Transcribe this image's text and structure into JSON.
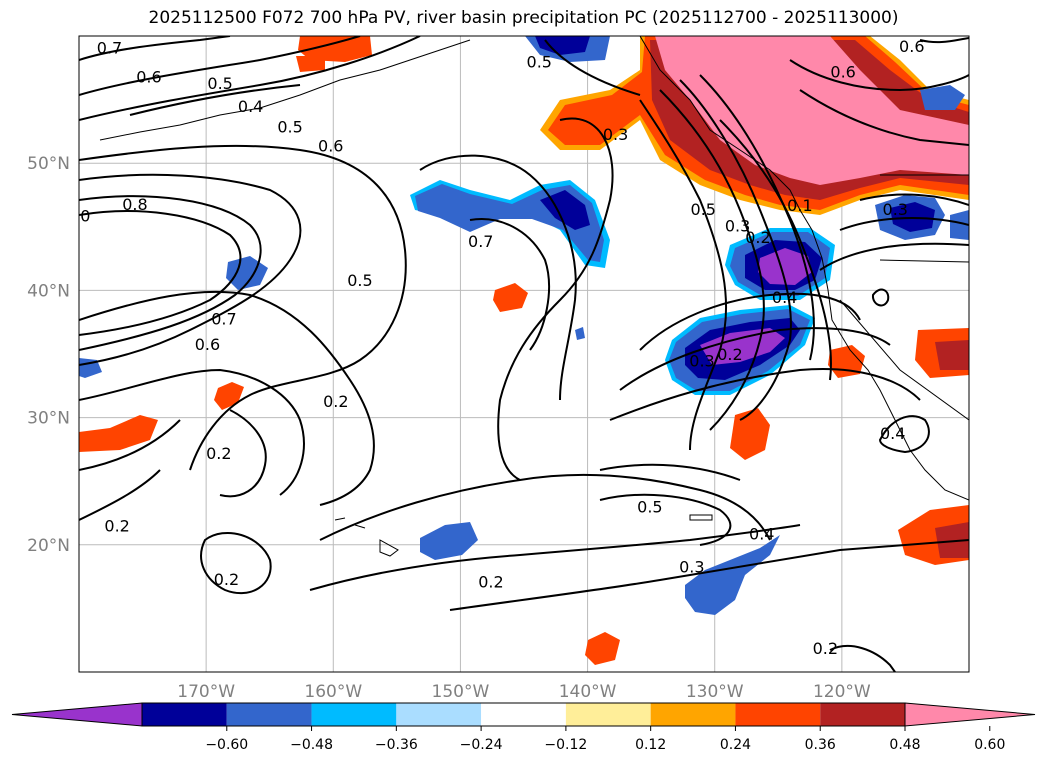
{
  "title": "2025112500 F072 700 hPa PV, river basin precipitation PC (2025112700 - 2025113000)",
  "map": {
    "lat_ticks": [
      {
        "lat": 50,
        "label": "50°N"
      },
      {
        "lat": 40,
        "label": "40°N"
      },
      {
        "lat": 30,
        "label": "30°N"
      },
      {
        "lat": 20,
        "label": "20°N"
      }
    ],
    "lon_ticks": [
      {
        "lon": -170,
        "label": "170°W"
      },
      {
        "lon": -160,
        "label": "160°W"
      },
      {
        "lon": -150,
        "label": "150°W"
      },
      {
        "lon": -140,
        "label": "140°W"
      },
      {
        "lon": -130,
        "label": "130°W"
      },
      {
        "lon": -120,
        "label": "120°W"
      }
    ],
    "contour_labels": [
      {
        "text": "0.7",
        "lon": -177.6,
        "lat": 59.1
      },
      {
        "text": "0.6",
        "lon": -174.5,
        "lat": 56.8
      },
      {
        "text": "0.5",
        "lon": -168.9,
        "lat": 56.3
      },
      {
        "text": "0.4",
        "lon": -166.5,
        "lat": 54.5
      },
      {
        "text": "0.5",
        "lon": -163.4,
        "lat": 52.9
      },
      {
        "text": "0.6",
        "lon": -160.2,
        "lat": 51.4
      },
      {
        "text": "0.8",
        "lon": -175.6,
        "lat": 46.8
      },
      {
        "text": "0",
        "lon": -179.5,
        "lat": 45.9
      },
      {
        "text": "0.7",
        "lon": -148.4,
        "lat": 43.9
      },
      {
        "text": "0.5",
        "lon": -157.9,
        "lat": 40.8
      },
      {
        "text": "0.7",
        "lon": -168.6,
        "lat": 37.8
      },
      {
        "text": "0.6",
        "lon": -169.9,
        "lat": 35.8
      },
      {
        "text": "0.2",
        "lon": -159.8,
        "lat": 31.3
      },
      {
        "text": "0.2",
        "lon": -169.0,
        "lat": 27.2
      },
      {
        "text": "0.2",
        "lon": -177.0,
        "lat": 21.5
      },
      {
        "text": "0.2",
        "lon": -168.4,
        "lat": 17.3
      },
      {
        "text": "0.5",
        "lon": -143.8,
        "lat": 58.0
      },
      {
        "text": "0.3",
        "lon": -137.8,
        "lat": 52.3
      },
      {
        "text": "0.5",
        "lon": -130.9,
        "lat": 46.4
      },
      {
        "text": "0.6",
        "lon": -119.9,
        "lat": 57.2
      },
      {
        "text": "0.6",
        "lon": -114.5,
        "lat": 59.2
      },
      {
        "text": "0.3",
        "lon": -128.2,
        "lat": 45.1
      },
      {
        "text": "0.2",
        "lon": -126.6,
        "lat": 44.2
      },
      {
        "text": "0.1",
        "lon": -123.3,
        "lat": 46.7
      },
      {
        "text": "0.3",
        "lon": -115.8,
        "lat": 46.4
      },
      {
        "text": "0.3",
        "lon": -131.0,
        "lat": 34.5
      },
      {
        "text": "0.2",
        "lon": -128.8,
        "lat": 35.0
      },
      {
        "text": "0.4",
        "lon": -124.5,
        "lat": 39.5
      },
      {
        "text": "0.4",
        "lon": -116.0,
        "lat": 28.8
      },
      {
        "text": "0.5",
        "lon": -135.1,
        "lat": 23.0
      },
      {
        "text": "0.4",
        "lon": -126.3,
        "lat": 20.9
      },
      {
        "text": "0.3",
        "lon": -131.8,
        "lat": 18.3
      },
      {
        "text": "0.2",
        "lon": -147.6,
        "lat": 17.1
      },
      {
        "text": "0.2",
        "lon": -121.3,
        "lat": 11.9
      }
    ]
  },
  "colorbar": {
    "colors": [
      "#9933cc",
      "#000099",
      "#3366cc",
      "#00bbff",
      "#aaddff",
      "#ffffff",
      "#ffee99",
      "#ffa500",
      "#ff4400",
      "#b22222",
      "#ff88aa"
    ],
    "tick_labels": [
      "−0.60",
      "−0.48",
      "−0.36",
      "−0.24",
      "−0.12",
      "0.12",
      "0.24",
      "0.36",
      "0.48",
      "0.60"
    ]
  }
}
